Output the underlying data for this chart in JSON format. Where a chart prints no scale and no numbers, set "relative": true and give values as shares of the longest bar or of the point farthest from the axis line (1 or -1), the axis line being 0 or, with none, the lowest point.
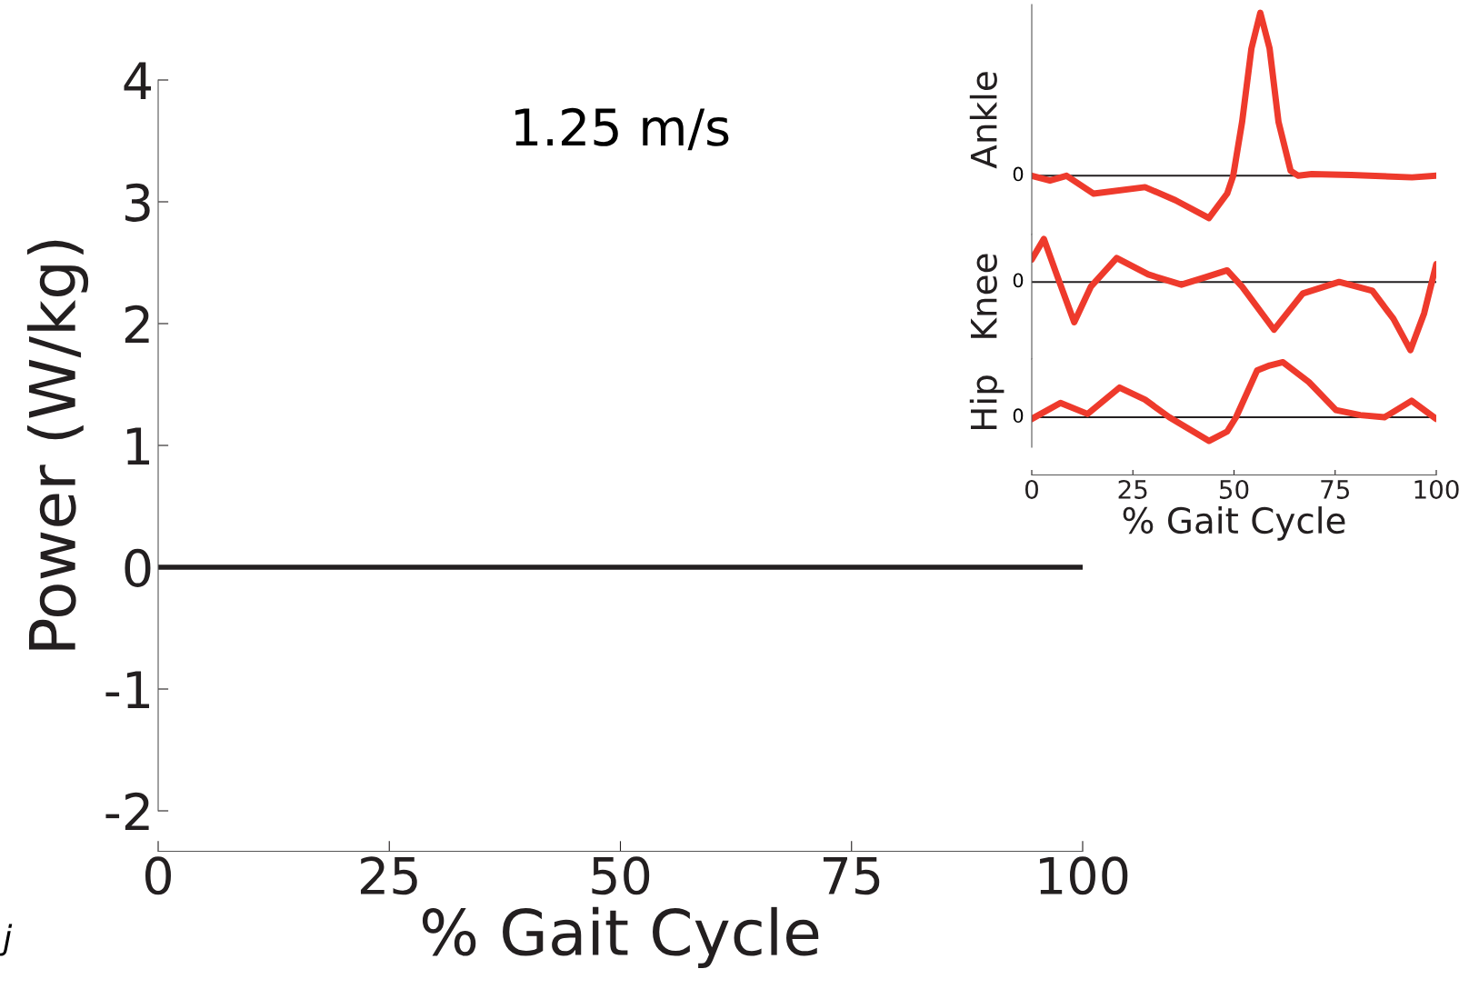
{
  "chart_data": [
    {
      "type": "line",
      "title": "1.25 m/s",
      "xlabel": "% Gait Cycle",
      "ylabel": "Power (W/kg)",
      "xlim": [
        0,
        100
      ],
      "xticks": [
        0,
        25,
        50,
        75,
        100
      ],
      "ylim": [
        -2,
        4
      ],
      "yticks": [
        -2,
        -1,
        0,
        1,
        2,
        3,
        4
      ],
      "grid": false,
      "ref_lines": [
        {
          "axis": "y",
          "value": 0,
          "color": "#231f20"
        }
      ],
      "annotations": [
        "j"
      ]
    },
    {
      "type": "line",
      "ylabel": "Ankle",
      "relative": true,
      "xlim": [
        0,
        100
      ],
      "xticks": [
        0,
        25,
        50,
        75,
        100
      ],
      "tick_labels": false,
      "ref_lines": [
        {
          "axis": "y",
          "value": 0,
          "label": "0",
          "color": "#231f20"
        }
      ],
      "series": [
        {
          "color": "#ee3a2c",
          "x": [
            0,
            4.5,
            8.6,
            15.3,
            28,
            35.5,
            43.8,
            48.3,
            49.8,
            52,
            54.3,
            56.5,
            58.8,
            61,
            64,
            65.9,
            69.2,
            79,
            94,
            100
          ],
          "values": [
            0,
            -0.03,
            0,
            -0.11,
            -0.07,
            -0.15,
            -0.26,
            -0.11,
            0,
            0.33,
            0.78,
            1,
            0.78,
            0.33,
            0.03,
            0,
            0.01,
            0.005,
            -0.01,
            0
          ]
        }
      ]
    },
    {
      "type": "line",
      "ylabel": "Knee",
      "relative": true,
      "xlim": [
        0,
        100
      ],
      "xticks": [
        0,
        25,
        50,
        75,
        100
      ],
      "tick_labels": false,
      "ref_lines": [
        {
          "axis": "y",
          "value": 0,
          "label": "0",
          "color": "#231f20"
        }
      ],
      "series": [
        {
          "color": "#ee3a2c",
          "x": [
            0,
            3,
            6.4,
            10.5,
            14.6,
            21,
            28.8,
            37,
            43,
            48.3,
            52,
            59.9,
            67,
            76,
            84.2,
            89.4,
            93.6,
            97,
            100
          ],
          "values": [
            0.33,
            0.63,
            0.07,
            -0.59,
            -0.07,
            0.35,
            0.11,
            -0.04,
            0.07,
            0.17,
            -0.07,
            -0.7,
            -0.17,
            0,
            -0.13,
            -0.54,
            -1,
            -0.46,
            0.26
          ]
        }
      ]
    },
    {
      "type": "line",
      "ylabel": "Hip",
      "xlabel": "% Gait Cycle",
      "relative": true,
      "xlim": [
        0,
        100
      ],
      "xticks": [
        0,
        25,
        50,
        75,
        100
      ],
      "tick_labels": "x",
      "ref_lines": [
        {
          "axis": "y",
          "value": 0,
          "label": "0",
          "color": "#231f20"
        }
      ],
      "series": [
        {
          "color": "#ee3a2c",
          "x": [
            0,
            7.1,
            13.8,
            21.7,
            28,
            34,
            43.8,
            48.3,
            50.5,
            55.7,
            58.8,
            62.1,
            68.5,
            75.2,
            81.2,
            87.2,
            93.9,
            100
          ],
          "values": [
            -0.03,
            0.26,
            0.06,
            0.54,
            0.32,
            0,
            -0.43,
            -0.26,
            0,
            0.85,
            0.94,
            1,
            0.64,
            0.13,
            0.04,
            0,
            0.3,
            -0.03
          ]
        }
      ]
    }
  ]
}
